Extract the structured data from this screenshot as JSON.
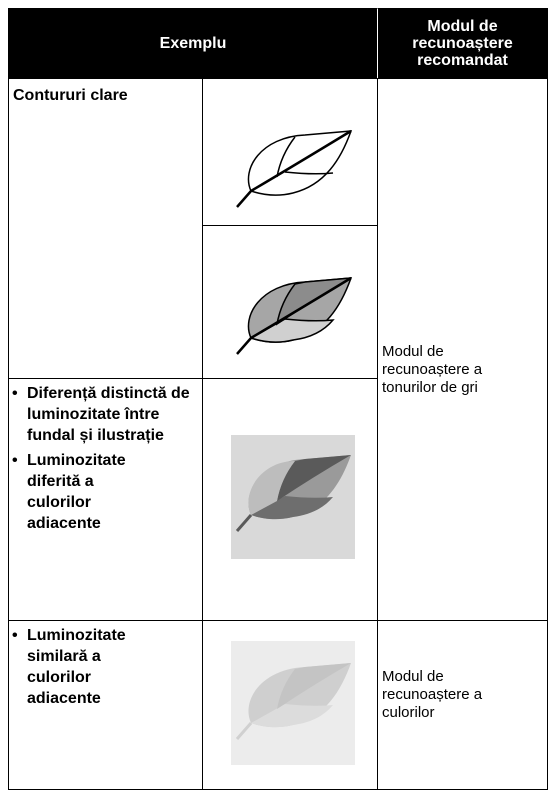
{
  "table": {
    "header": [
      "Exemplu",
      "Modul de recunoaștere recomandat"
    ],
    "rows": [
      {
        "example": [
          "Contururi clare"
        ],
        "mode": "Modul de recunoaștere a tonurilor de gri"
      },
      {
        "example": [
          "Diferență distinctă de luminozitate între fundal și ilustrație",
          "Luminozitate diferită a culorilor adiacente"
        ]
      },
      {
        "example": [
          "Luminozitate similară a culorilor adiacente"
        ],
        "mode": "Modul de recunoaștere a culorilor"
      }
    ]
  }
}
